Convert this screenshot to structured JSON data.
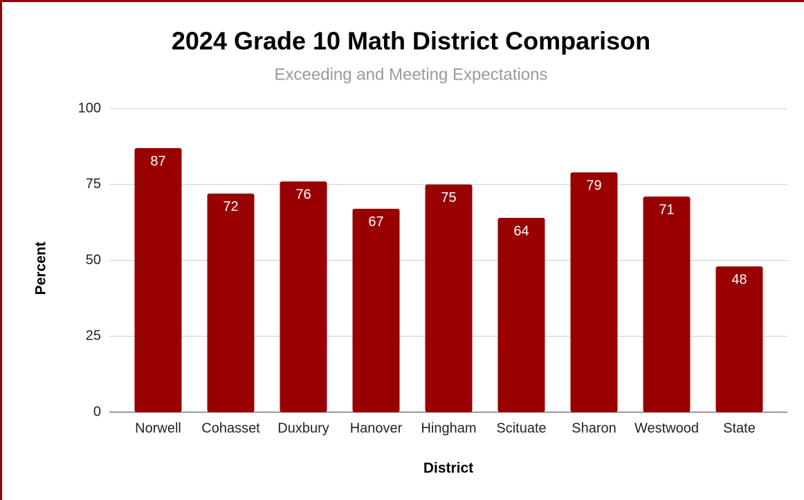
{
  "chart_data": {
    "type": "bar",
    "title": "2024 Grade 10 Math District Comparison",
    "subtitle": "Exceeding and Meeting Expectations",
    "x_label": "District",
    "y_label": "Percent",
    "categories": [
      "Norwell",
      "Cohasset",
      "Duxbury",
      "Hanover",
      "Hingham",
      "Scituate",
      "Sharon",
      "Westwood",
      "State"
    ],
    "values": [
      87,
      72,
      76,
      67,
      75,
      64,
      79,
      71,
      48
    ],
    "color": "#990000",
    "ylim": [
      0,
      100
    ],
    "yticks": [
      0,
      25,
      50,
      75,
      100
    ],
    "grid": true
  }
}
